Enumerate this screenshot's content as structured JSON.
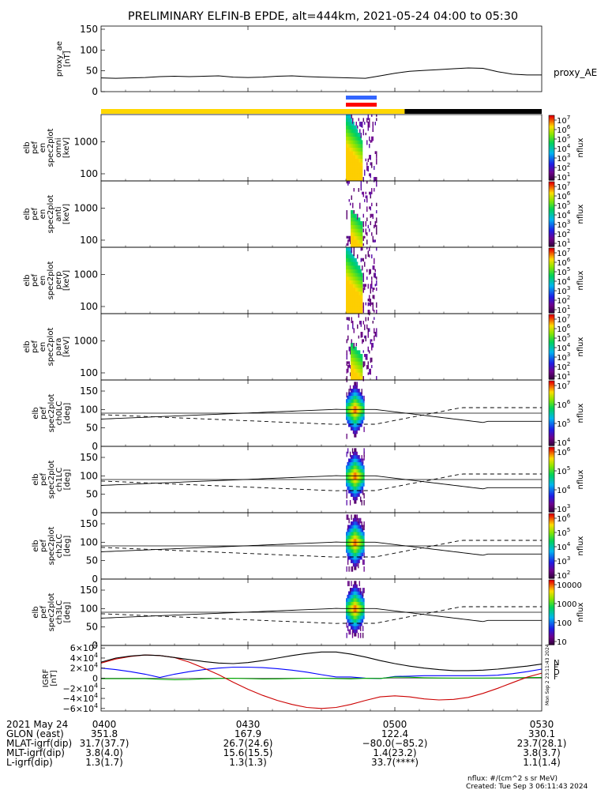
{
  "title": "PRELIMINARY ELFIN-B EPDE, alt=444km, 2021-05-24 04:00 to 05:30",
  "chart_data": [
    {
      "id": "proxy_ae",
      "type": "line",
      "ylabel": [
        "proxy_ae",
        "[nT]"
      ],
      "series_label": "proxy_AE",
      "yticks": [
        "150",
        "100",
        "50",
        "0"
      ],
      "ylim": [
        0,
        150
      ],
      "xlim_minutes": [
        0,
        90
      ],
      "x_minutes": [
        0,
        3,
        6,
        9,
        12,
        15,
        18,
        21,
        24,
        27,
        30,
        33,
        36,
        39,
        42,
        45,
        48,
        51,
        54,
        57,
        60,
        63,
        66,
        69,
        72,
        75,
        78,
        81,
        84,
        87,
        90
      ],
      "values": [
        33,
        32,
        33,
        34,
        36,
        37,
        36,
        37,
        38,
        35,
        34,
        35,
        37,
        38,
        36,
        35,
        34,
        33,
        32,
        38,
        44,
        49,
        51,
        53,
        55,
        57,
        56,
        48,
        42,
        40,
        40
      ]
    },
    {
      "id": "indicator_bars",
      "type": "bar",
      "segments": [
        {
          "label": "science_zone",
          "color": "#3366ff",
          "start_min": 50.0,
          "end_min": 56.3
        },
        {
          "label": "attitude",
          "color": "#ff0000",
          "start_min": 50.0,
          "end_min": 56.3
        },
        {
          "label": "sunlit",
          "color": "#ffd700",
          "start_min": 0,
          "end_min": 62.0
        },
        {
          "label": "eclipse",
          "color": "#000000",
          "start_min": 62.0,
          "end_min": 90
        }
      ]
    },
    {
      "id": "spec_omni",
      "type": "heatmap",
      "ylabel": [
        "elb",
        "pef",
        "en",
        "spec2plot",
        "omni",
        "[keV]"
      ],
      "yticks": [
        "1000",
        "100"
      ],
      "ylim_keV": [
        60,
        7000
      ],
      "time_range_min": [
        50.0,
        56.3
      ],
      "cbar_label": "nflux",
      "cbar_ticks": [
        "10^7",
        "10^6",
        "10^5",
        "10^4",
        "10^3",
        "10^2",
        "10^1"
      ]
    },
    {
      "id": "spec_anti",
      "type": "heatmap",
      "ylabel": [
        "elb",
        "pef",
        "en",
        "spec2plot",
        "anti",
        "[keV]"
      ],
      "yticks": [
        "1000",
        "100"
      ],
      "ylim_keV": [
        60,
        7000
      ],
      "time_range_min": [
        50.0,
        56.3
      ],
      "cbar_label": "nflux",
      "cbar_ticks": [
        "10^7",
        "10^6",
        "10^5",
        "10^4",
        "10^3",
        "10^2",
        "10^1"
      ]
    },
    {
      "id": "spec_perp",
      "type": "heatmap",
      "ylabel": [
        "elb",
        "pef",
        "en",
        "spec2plot",
        "perp",
        "[keV]"
      ],
      "yticks": [
        "1000",
        "100"
      ],
      "ylim_keV": [
        60,
        7000
      ],
      "time_range_min": [
        50.0,
        56.3
      ],
      "cbar_label": "nflux",
      "cbar_ticks": [
        "10^7",
        "10^6",
        "10^5",
        "10^4",
        "10^3",
        "10^2",
        "10^1"
      ]
    },
    {
      "id": "spec_para",
      "type": "heatmap",
      "ylabel": [
        "elb",
        "pef",
        "en",
        "spec2plot",
        "para",
        "[keV]"
      ],
      "yticks": [
        "1000",
        "100"
      ],
      "ylim_keV": [
        60,
        7000
      ],
      "time_range_min": [
        50.0,
        56.3
      ],
      "cbar_label": "nflux",
      "cbar_ticks": [
        "10^7",
        "10^6",
        "10^5",
        "10^4",
        "10^3",
        "10^2",
        "10^1"
      ]
    },
    {
      "id": "pa_ch0",
      "type": "heatmap",
      "ylabel": [
        "elb",
        "pef",
        "spec2plot",
        "ch0LC",
        "[deg]"
      ],
      "yticks": [
        "150",
        "100",
        "50",
        "0"
      ],
      "ylim": [
        0,
        180
      ],
      "time_range_min": [
        50.0,
        56.3
      ],
      "cbar_label": "nflux",
      "cbar_ticks": [
        "10^7",
        "10^6",
        "10^5",
        "10^4"
      ]
    },
    {
      "id": "pa_ch1",
      "type": "heatmap",
      "ylabel": [
        "elb",
        "pef",
        "spec2plot",
        "ch1LC",
        "[deg]"
      ],
      "yticks": [
        "150",
        "100",
        "50",
        "0"
      ],
      "ylim": [
        0,
        180
      ],
      "time_range_min": [
        50.0,
        56.3
      ],
      "cbar_label": "nflux",
      "cbar_ticks": [
        "10^6",
        "10^5",
        "10^4",
        "10^3"
      ]
    },
    {
      "id": "pa_ch2",
      "type": "heatmap",
      "ylabel": [
        "elb",
        "pef",
        "spec2plot",
        "ch2LC",
        "[deg]"
      ],
      "yticks": [
        "150",
        "100",
        "50",
        "0"
      ],
      "ylim": [
        0,
        180
      ],
      "time_range_min": [
        50.0,
        56.3
      ],
      "cbar_label": "nflux",
      "cbar_ticks": [
        "10^6",
        "10^5",
        "10^4",
        "10^3",
        "10^2"
      ]
    },
    {
      "id": "pa_ch3",
      "type": "heatmap",
      "ylabel": [
        "elb",
        "pef",
        "spec2plot",
        "ch3LC",
        "[deg]"
      ],
      "yticks": [
        "150",
        "100",
        "50",
        "0"
      ],
      "ylim": [
        0,
        180
      ],
      "time_range_min": [
        50.0,
        56.3
      ],
      "cbar_label": "nflux",
      "cbar_ticks": [
        "10000",
        "1000",
        "100",
        "10"
      ]
    },
    {
      "id": "igrf",
      "type": "line",
      "ylabel": [
        "IGRF",
        "[nT]"
      ],
      "yticks": [
        "6×10^4",
        "4×10^4",
        "2×10^4",
        "0",
        "−2×10^4",
        "−4×10^4",
        "−6×10^4"
      ],
      "ylim": [
        -65000,
        65000
      ],
      "legend": [
        "N",
        "E",
        "D",
        "F"
      ],
      "series": [
        {
          "name": "N",
          "color": "#0000ff",
          "x_minutes": [
            0,
            3,
            6,
            9,
            12,
            15,
            18,
            21,
            24,
            27,
            30,
            33,
            36,
            39,
            42,
            45,
            48,
            51,
            54,
            57,
            60,
            63,
            66,
            69,
            72,
            75,
            78,
            81,
            84,
            87,
            90
          ],
          "values": [
            20000,
            17000,
            13000,
            8000,
            1500,
            8000,
            13000,
            17000,
            20000,
            22000,
            22000,
            21000,
            19000,
            16000,
            12000,
            7000,
            2500,
            2500,
            100,
            -800,
            3500,
            4000,
            5000,
            5000,
            5000,
            5000,
            5000,
            6000,
            9000,
            13000,
            18000
          ]
        },
        {
          "name": "E",
          "color": "#00aa00",
          "x_minutes": [
            0,
            3,
            6,
            9,
            12,
            15,
            18,
            21,
            24,
            27,
            30,
            33,
            36,
            39,
            42,
            45,
            48,
            51,
            54,
            57,
            60,
            63,
            66,
            69,
            72,
            75,
            78,
            81,
            84,
            87,
            90
          ],
          "values": [
            -1000,
            -900,
            -900,
            -1000,
            -2000,
            -3000,
            -2500,
            -1200,
            -400,
            -200,
            -800,
            -1500,
            -1300,
            -600,
            -200,
            -100,
            -600,
            -1200,
            -200,
            -500,
            2500,
            2000,
            1000,
            500,
            300,
            300,
            300,
            500,
            800,
            1200,
            1500
          ]
        },
        {
          "name": "D",
          "color": "#cc0000",
          "x_minutes": [
            0,
            3,
            6,
            9,
            12,
            15,
            18,
            21,
            24,
            27,
            30,
            33,
            36,
            39,
            42,
            45,
            48,
            51,
            54,
            57,
            60,
            63,
            66,
            69,
            72,
            75,
            78,
            81,
            84,
            87,
            90
          ],
          "values": [
            30000,
            38000,
            43000,
            46000,
            45000,
            41000,
            32000,
            20000,
            7000,
            -8000,
            -22000,
            -34000,
            -44000,
            -52000,
            -58000,
            -60000,
            -58000,
            -52000,
            -44000,
            -37000,
            -35000,
            -37000,
            -41000,
            -43000,
            -42000,
            -38000,
            -30000,
            -20000,
            -9000,
            2000,
            10000
          ]
        },
        {
          "name": "F",
          "color": "#000000",
          "x_minutes": [
            0,
            3,
            6,
            9,
            12,
            15,
            18,
            21,
            24,
            27,
            30,
            33,
            36,
            39,
            42,
            45,
            48,
            51,
            54,
            57,
            60,
            63,
            66,
            69,
            72,
            75,
            78,
            81,
            84,
            87,
            90
          ],
          "values": [
            32000,
            40000,
            44000,
            46000,
            45000,
            41000,
            37000,
            33000,
            30000,
            29000,
            31000,
            35000,
            40000,
            45000,
            49000,
            52000,
            52000,
            48000,
            42000,
            35000,
            29000,
            24000,
            20000,
            17000,
            15000,
            15000,
            16000,
            18000,
            21000,
            24000,
            28000
          ]
        }
      ]
    }
  ],
  "ephemeris": {
    "rows": [
      {
        "label": "2021 May 24",
        "values": [
          "0400",
          "0430",
          "0500",
          "0530"
        ]
      },
      {
        "label": "GLON (east)",
        "values": [
          "351.8",
          "167.9",
          "122.4",
          "330.1"
        ]
      },
      {
        "label": "MLAT-igrf(dip)",
        "values": [
          "31.7(37.7)",
          "26.7(24.6)",
          "−80.0(−85.2)",
          "23.7(28.1)"
        ]
      },
      {
        "label": "MLT-igrf(dip)",
        "values": [
          "3.8(4.0)",
          "15.6(15.5)",
          "1.4(23.2)",
          "3.8(3.7)"
        ]
      },
      {
        "label": "L-igrf(dip)",
        "values": [
          "1.3(1.7)",
          "1.3(1.3)",
          "33.7(****)",
          "1.1(1.4)"
        ]
      }
    ]
  },
  "footer": {
    "units": "nflux: #/(cm^2 s sr MeV)",
    "created": "Created: Tue Sep  3 06:11:43 2024"
  },
  "side_stamp": "Mon Sep  2 23:11:43 2024"
}
